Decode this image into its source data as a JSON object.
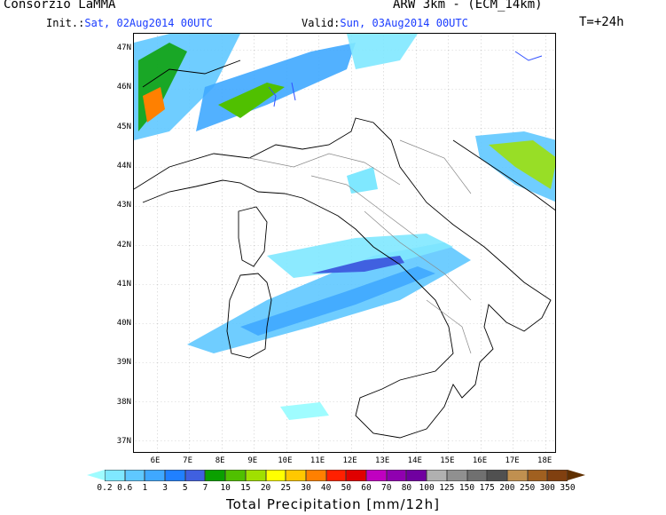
{
  "header": {
    "organization": "Consorzio LaMMA",
    "model": "ARW 3km - (ECM_14km)",
    "init_label": "Init.:",
    "init_value": "Sat, 02Aug2014 00UTC",
    "valid_label": "Valid:",
    "valid_value": "Sun, 03Aug2014 00UTC",
    "forecast_step": "T=+24h"
  },
  "map": {
    "lat_labels": [
      "47N",
      "46N",
      "45N",
      "44N",
      "43N",
      "42N",
      "41N",
      "40N",
      "39N",
      "38N",
      "37N"
    ],
    "lon_labels": [
      "6E",
      "7E",
      "8E",
      "9E",
      "10E",
      "11E",
      "12E",
      "13E",
      "14E",
      "15E",
      "16E",
      "17E",
      "18E"
    ],
    "region": "Italy"
  },
  "colorbar": {
    "title": "Total Precipitation [mm/12h]",
    "values": [
      "0.2",
      "0.6",
      "1",
      "3",
      "5",
      "7",
      "10",
      "15",
      "20",
      "25",
      "30",
      "40",
      "50",
      "60",
      "70",
      "80",
      "100",
      "125",
      "150",
      "175",
      "200",
      "250",
      "300",
      "350"
    ],
    "colors": [
      "#9ffcff",
      "#7fe8ff",
      "#5fc8ff",
      "#3fa8ff",
      "#2080ff",
      "#4060e0",
      "#0aa000",
      "#50c000",
      "#a0e000",
      "#ffff00",
      "#ffc800",
      "#ff8000",
      "#ff2000",
      "#e00000",
      "#c000c0",
      "#9000b0",
      "#7000a0",
      "#b0b0b0",
      "#909090",
      "#707070",
      "#505050",
      "#c09050",
      "#a06020",
      "#804010",
      "#603000"
    ]
  }
}
